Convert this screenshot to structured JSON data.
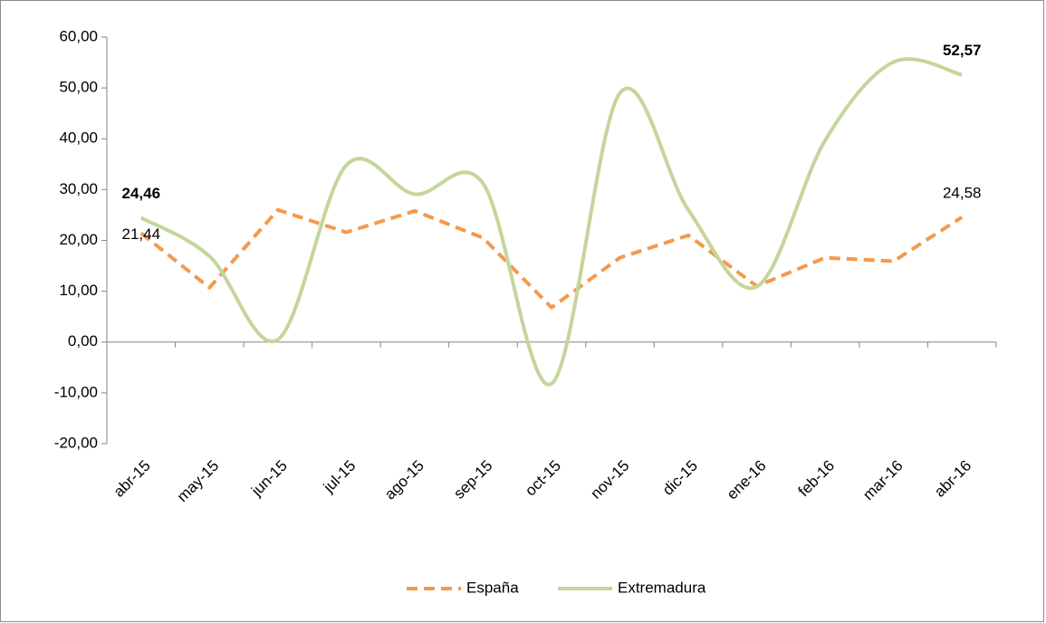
{
  "chart_data": {
    "type": "line",
    "categories": [
      "abr-15",
      "may-15",
      "jun-15",
      "jul-15",
      "ago-15",
      "sep-15",
      "oct-15",
      "nov-15",
      "dic-15",
      "ene-16",
      "feb-16",
      "mar-16",
      "abr-16"
    ],
    "series": [
      {
        "name": "España",
        "color": "#f39a4d",
        "dash": true,
        "smooth": false,
        "values": [
          21.44,
          10.7,
          26.0,
          21.6,
          25.8,
          20.5,
          6.8,
          16.6,
          21.0,
          11.0,
          16.6,
          15.9,
          24.58
        ],
        "value_labels": [
          "21,44",
          null,
          null,
          null,
          null,
          null,
          null,
          null,
          null,
          null,
          null,
          null,
          "24,58"
        ],
        "label_weight": "normal"
      },
      {
        "name": "Extremadura",
        "color": "#c3d69b",
        "dash": false,
        "smooth": true,
        "values": [
          24.46,
          16.9,
          0.5,
          34.8,
          29.1,
          31.2,
          -8.2,
          49.0,
          26.0,
          10.9,
          39.7,
          55.1,
          52.57
        ],
        "value_labels": [
          "24,46",
          null,
          null,
          null,
          null,
          null,
          null,
          null,
          null,
          null,
          null,
          null,
          "52,57"
        ],
        "label_weight": "bold"
      }
    ],
    "ylim": [
      -20,
      60
    ],
    "yticks": [
      {
        "value": -20,
        "label": "-20,00"
      },
      {
        "value": -10,
        "label": "-10,00"
      },
      {
        "value": 0,
        "label": "0,00"
      },
      {
        "value": 10,
        "label": "10,00"
      },
      {
        "value": 20,
        "label": "20,00"
      },
      {
        "value": 30,
        "label": "30,00"
      },
      {
        "value": 40,
        "label": "40,00"
      },
      {
        "value": 50,
        "label": "50,00"
      },
      {
        "value": 60,
        "label": "60,00"
      }
    ],
    "grid": false,
    "legend": "bottom"
  }
}
